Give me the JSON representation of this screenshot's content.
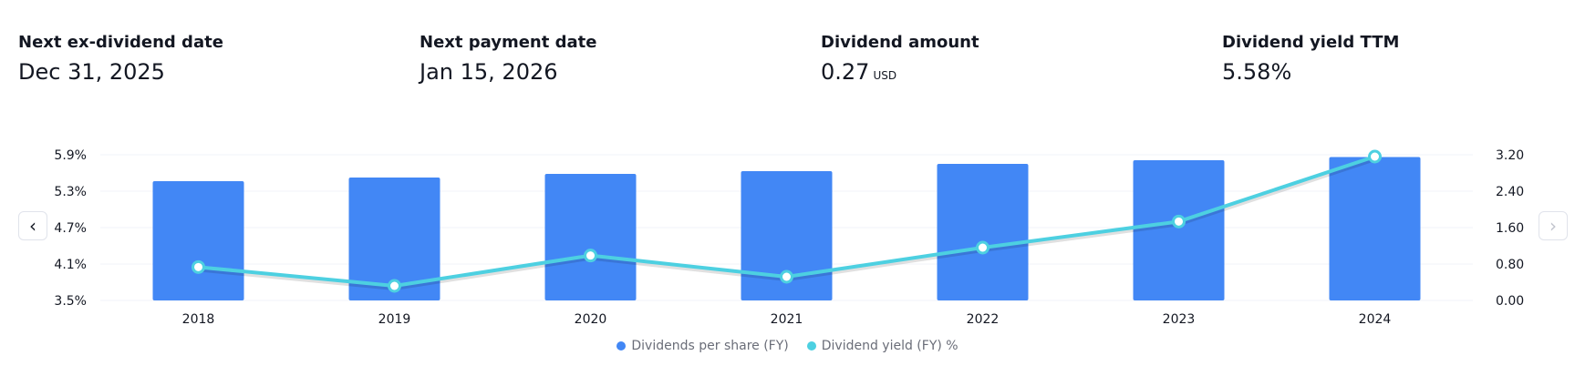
{
  "stats": [
    {
      "label": "Next ex-dividend date",
      "value": "Dec 31, 2025",
      "unit": ""
    },
    {
      "label": "Next payment date",
      "value": "Jan 15, 2026",
      "unit": ""
    },
    {
      "label": "Dividend amount",
      "value": "0.27",
      "unit": "USD"
    },
    {
      "label": "Dividend yield TTM",
      "value": "5.58%",
      "unit": ""
    }
  ],
  "nav": {
    "prev_icon": "chevron-left-icon",
    "next_icon": "chevron-right-icon"
  },
  "colors": {
    "bar": "#4287f5",
    "line": "#4dd0e1",
    "grid": "#f0f3fa",
    "text": "#131722",
    "legend_text": "#6a6d78"
  },
  "chart_data": {
    "type": "bar",
    "categories": [
      "2018",
      "2019",
      "2020",
      "2021",
      "2022",
      "2023",
      "2024"
    ],
    "series": [
      {
        "name": "Dividends per share (FY)",
        "type": "bar",
        "axis": "right",
        "values": [
          2.62,
          2.7,
          2.78,
          2.84,
          3.0,
          3.08,
          3.15
        ]
      },
      {
        "name": "Dividend yield (FY) %",
        "type": "line",
        "axis": "left",
        "values": [
          4.05,
          3.74,
          4.24,
          3.89,
          4.37,
          4.8,
          5.87
        ]
      }
    ],
    "left_axis": {
      "ticks": [
        "3.5%",
        "4.1%",
        "4.7%",
        "5.3%",
        "5.9%"
      ],
      "ylim": [
        3.5,
        5.9
      ]
    },
    "right_axis": {
      "ticks": [
        "0.00",
        "0.80",
        "1.60",
        "2.40",
        "3.20"
      ],
      "ylim": [
        0,
        3.2
      ]
    },
    "grid": true,
    "legend": "bottom-center"
  }
}
